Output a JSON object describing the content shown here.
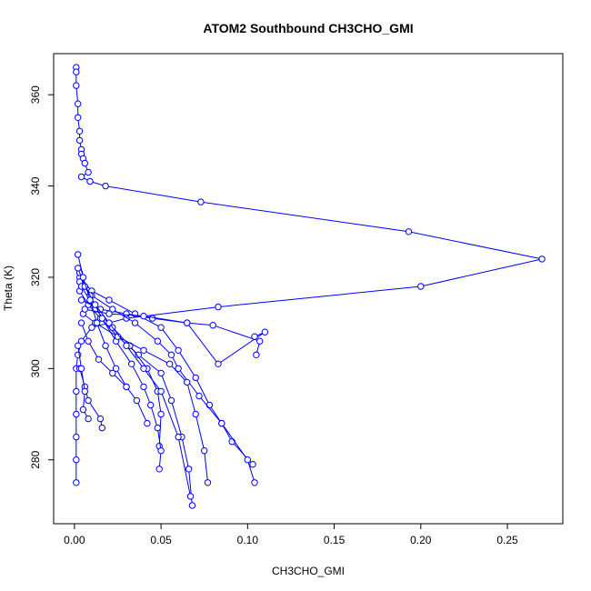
{
  "chart_data": {
    "type": "line",
    "title": "ATOM2 Southbound CH3CHO_GMI",
    "xlabel": "CH3CHO_GMI",
    "ylabel": "Theta (K)",
    "xlim": [
      -0.012,
      0.282
    ],
    "ylim": [
      266,
      369
    ],
    "x_ticks": [
      0.0,
      0.05,
      0.1,
      0.15,
      0.2,
      0.25
    ],
    "x_tick_labels": [
      "0.00",
      "0.05",
      "0.10",
      "0.15",
      "0.20",
      "0.25"
    ],
    "y_ticks": [
      280,
      300,
      320,
      340,
      360
    ],
    "y_tick_labels": [
      "280",
      "300",
      "320",
      "340",
      "360"
    ],
    "grid": false,
    "series_color": "#0000ff",
    "series": [
      {
        "x": [
          0.001,
          0.001,
          0.001,
          0.002,
          0.002,
          0.003,
          0.003,
          0.004,
          0.004,
          0.005,
          0.006,
          0.008,
          0.004,
          0.009,
          0.018,
          0.073,
          0.193,
          0.27,
          0.2,
          0.083,
          0.03,
          0.01,
          0.004,
          0.002,
          0.001,
          0.001,
          0.001,
          0.001,
          0.001,
          0.001
        ],
        "y": [
          366,
          365,
          362,
          358,
          355,
          352,
          350,
          348,
          347,
          346,
          345,
          343,
          342,
          341,
          340,
          336.5,
          330,
          324,
          318,
          313.5,
          311,
          309,
          306,
          303,
          300,
          295,
          290,
          285,
          280,
          275
        ]
      },
      {
        "x": [
          0.003,
          0.01,
          0.02,
          0.035,
          0.05,
          0.06,
          0.07,
          0.078,
          0.085,
          0.091,
          0.103
        ],
        "y": [
          320,
          317,
          315,
          312,
          309,
          304,
          298,
          292,
          288,
          284,
          279
        ]
      },
      {
        "x": [
          0.003,
          0.008,
          0.015,
          0.025,
          0.037,
          0.05,
          0.056,
          0.062,
          0.066,
          0.068
        ],
        "y": [
          317,
          314,
          311,
          307,
          303,
          299,
          293,
          285,
          278,
          270
        ]
      },
      {
        "x": [
          0.004,
          0.015,
          0.03,
          0.045,
          0.065,
          0.08,
          0.107,
          0.105
        ],
        "y": [
          315,
          313,
          312,
          311,
          310,
          309.5,
          306,
          303
        ]
      },
      {
        "x": [
          0.003,
          0.01,
          0.022,
          0.035,
          0.048,
          0.056,
          0.06,
          0.072,
          0.085,
          0.1,
          0.104
        ],
        "y": [
          319,
          316,
          313,
          310,
          306,
          303,
          300,
          294,
          288,
          280,
          275
        ]
      },
      {
        "x": [
          0.004,
          0.012,
          0.022,
          0.032,
          0.042,
          0.048,
          0.05,
          0.049
        ],
        "y": [
          318,
          313,
          309,
          305,
          300,
          295,
          290,
          283
        ]
      },
      {
        "x": [
          0.003,
          0.009,
          0.016,
          0.024,
          0.033,
          0.04,
          0.044,
          0.048,
          0.05,
          0.049
        ],
        "y": [
          321,
          316,
          311,
          306,
          301,
          296,
          292,
          287,
          282,
          278
        ]
      },
      {
        "x": [
          0.005,
          0.012,
          0.025,
          0.04,
          0.055,
          0.065,
          0.07,
          0.075,
          0.077
        ],
        "y": [
          312,
          310,
          307,
          304,
          301,
          297,
          290,
          282,
          275
        ]
      },
      {
        "x": [
          0.002,
          0.006,
          0.012,
          0.02,
          0.03,
          0.04,
          0.05,
          0.06,
          0.067
        ],
        "y": [
          322,
          318,
          314,
          310,
          305,
          300,
          295,
          285,
          272
        ]
      },
      {
        "x": [
          0.004,
          0.008,
          0.014,
          0.022,
          0.03,
          0.036,
          0.042
        ],
        "y": [
          310,
          306,
          302,
          299,
          296,
          293,
          288
        ]
      },
      {
        "x": [
          0.002,
          0.005,
          0.009,
          0.013,
          0.018,
          0.024,
          0.03
        ],
        "y": [
          325,
          320,
          315,
          310,
          305,
          300,
          296
        ]
      },
      {
        "x": [
          0.003,
          0.006,
          0.008,
          0.015,
          0.016
        ],
        "y": [
          300,
          296,
          293,
          289,
          287
        ]
      },
      {
        "x": [
          0.002,
          0.004,
          0.006,
          0.005,
          0.008
        ],
        "y": [
          305,
          300,
          295,
          291,
          289
        ]
      },
      {
        "x": [
          0.006,
          0.02,
          0.04,
          0.065,
          0.083,
          0.11,
          0.104
        ],
        "y": [
          313,
          312,
          311.5,
          310,
          301,
          308,
          307
        ]
      }
    ]
  }
}
